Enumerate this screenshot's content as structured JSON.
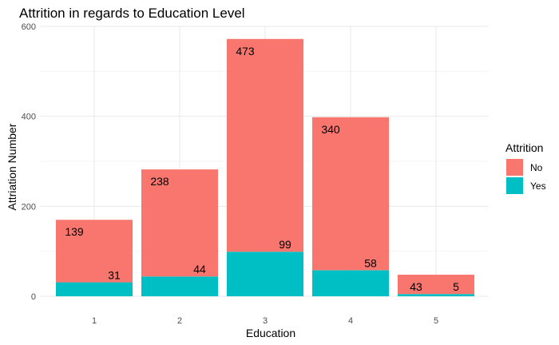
{
  "chart_data": {
    "type": "bar",
    "stacked": true,
    "title": "Attrition in regards to Education Level",
    "xlabel": "Education",
    "ylabel": "Attriation Number",
    "categories": [
      "1",
      "2",
      "3",
      "4",
      "5"
    ],
    "series": [
      {
        "name": "No",
        "values": [
          139,
          238,
          473,
          340,
          43
        ],
        "color": "#F8766D"
      },
      {
        "name": "Yes",
        "values": [
          31,
          44,
          99,
          58,
          5
        ],
        "color": "#00BFC4"
      }
    ],
    "ylim": [
      0,
      600
    ],
    "yticks": [
      0,
      200,
      400,
      600
    ],
    "grid": true,
    "legend": {
      "title": "Attrition",
      "position": "right"
    }
  }
}
